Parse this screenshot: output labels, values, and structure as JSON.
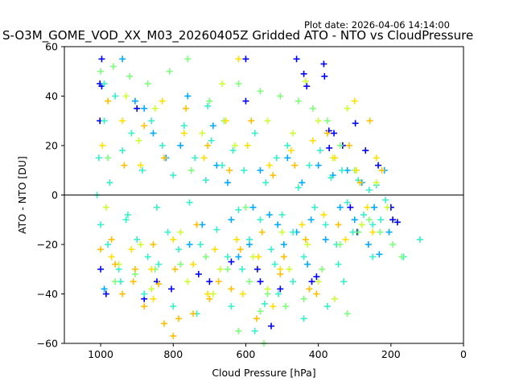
{
  "header": {
    "plot_date": "Plot date: 2026-04-06 14:14:00"
  },
  "chart_data": {
    "type": "scatter",
    "title": "S-O3M_GOME_VOD_XX_M03_20260405Z Gridded ATO - NTO vs CloudPressure",
    "xlabel": "Cloud Pressure [hPa]",
    "ylabel": "ATO - NTO [DU]",
    "xlim": [
      1100,
      0
    ],
    "ylim": [
      -60,
      60
    ],
    "x_inverted": true,
    "x_ticks": [
      1000,
      800,
      600,
      400,
      200,
      0
    ],
    "y_ticks": [
      -60,
      -40,
      -20,
      0,
      20,
      40,
      60
    ],
    "reference_line": {
      "y": 0,
      "color": "#000000"
    },
    "marker": "+",
    "grid": false,
    "colors": [
      "#0000ff",
      "#00aaff",
      "#35f0c8",
      "#7dff7a",
      "#ccff33",
      "#ffe000",
      "#ffbf00"
    ],
    "series": [
      {
        "color": "#0000ff",
        "points": [
          [
            997,
            55
          ],
          [
            1002,
            45
          ],
          [
            997,
            44
          ],
          [
            1002,
            30
          ],
          [
            1000,
            -30
          ],
          [
            985,
            -40
          ],
          [
            880,
            -42
          ],
          [
            845,
            -35
          ],
          [
            805,
            -38
          ],
          [
            730,
            -32
          ],
          [
            700,
            -35
          ],
          [
            640,
            -27
          ],
          [
            600,
            55
          ],
          [
            560,
            -35
          ],
          [
            530,
            -53
          ],
          [
            505,
            -38
          ],
          [
            460,
            55
          ],
          [
            440,
            49
          ],
          [
            432,
            44
          ],
          [
            385,
            53
          ],
          [
            383,
            48
          ],
          [
            371,
            26
          ],
          [
            370,
            19
          ],
          [
            357,
            25
          ],
          [
            333,
            20
          ],
          [
            312,
            -5
          ],
          [
            293,
            -15
          ],
          [
            298,
            29
          ],
          [
            270,
            18
          ],
          [
            235,
            12
          ],
          [
            200,
            -5
          ],
          [
            195,
            -10
          ],
          [
            182,
            -11
          ],
          [
            405,
            -33
          ],
          [
            418,
            -35
          ],
          [
            600,
            38
          ],
          [
            568,
            -30
          ],
          [
            900,
            35
          ]
        ]
      },
      {
        "color": "#00aaff",
        "points": [
          [
            940,
            55
          ],
          [
            905,
            38
          ],
          [
            880,
            35
          ],
          [
            855,
            25
          ],
          [
            820,
            15
          ],
          [
            780,
            20
          ],
          [
            755,
            -20
          ],
          [
            720,
            -12
          ],
          [
            690,
            28
          ],
          [
            650,
            5
          ],
          [
            620,
            -25
          ],
          [
            590,
            -20
          ],
          [
            560,
            10
          ],
          [
            535,
            -8
          ],
          [
            512,
            -12
          ],
          [
            485,
            15
          ],
          [
            460,
            -15
          ],
          [
            445,
            5
          ],
          [
            420,
            -10
          ],
          [
            400,
            12
          ],
          [
            380,
            -18
          ],
          [
            360,
            8
          ],
          [
            340,
            -5
          ],
          [
            320,
            10
          ],
          [
            300,
            -10
          ],
          [
            280,
            5
          ],
          [
            262,
            -20
          ],
          [
            246,
            -5
          ],
          [
            232,
            -24
          ],
          [
            218,
            10
          ],
          [
            205,
            -15
          ],
          [
            640,
            -10
          ],
          [
            680,
            12
          ],
          [
            580,
            -5
          ],
          [
            760,
            40
          ],
          [
            495,
            -20
          ],
          [
            430,
            -28
          ],
          [
            990,
            -38
          ]
        ]
      },
      {
        "color": "#35f0c8",
        "points": [
          [
            1005,
            15
          ],
          [
            1000,
            -12
          ],
          [
            990,
            30
          ],
          [
            980,
            -20
          ],
          [
            975,
            5
          ],
          [
            960,
            40
          ],
          [
            950,
            -30
          ],
          [
            940,
            18
          ],
          [
            925,
            -8
          ],
          [
            915,
            25
          ],
          [
            900,
            -18
          ],
          [
            885,
            10
          ],
          [
            870,
            -25
          ],
          [
            860,
            30
          ],
          [
            845,
            -5
          ],
          [
            830,
            20
          ],
          [
            815,
            -15
          ],
          [
            800,
            8
          ],
          [
            785,
            -22
          ],
          [
            770,
            28
          ],
          [
            755,
            -3
          ],
          [
            740,
            15
          ],
          [
            725,
            -20
          ],
          [
            710,
            6
          ],
          [
            695,
            22
          ],
          [
            680,
            -14
          ],
          [
            665,
            12
          ],
          [
            650,
            -25
          ],
          [
            635,
            18
          ],
          [
            620,
            -6
          ],
          [
            605,
            10
          ],
          [
            590,
            -18
          ],
          [
            575,
            25
          ],
          [
            560,
            -10
          ],
          [
            545,
            5
          ],
          [
            530,
            -22
          ],
          [
            515,
            15
          ],
          [
            500,
            -8
          ],
          [
            485,
            20
          ],
          [
            470,
            -15
          ],
          [
            455,
            3
          ],
          [
            440,
            -25
          ],
          [
            425,
            12
          ],
          [
            410,
            -5
          ],
          [
            395,
            18
          ],
          [
            380,
            -12
          ],
          [
            365,
            7
          ],
          [
            350,
            -20
          ],
          [
            335,
            10
          ],
          [
            320,
            -3
          ],
          [
            305,
            -15
          ],
          [
            290,
            6
          ],
          [
            275,
            -8
          ],
          [
            260,
            2
          ],
          [
            250,
            -12
          ],
          [
            240,
            4
          ],
          [
            228,
            -10
          ],
          [
            215,
            -2
          ],
          [
            990,
            45
          ],
          [
            945,
            -35
          ],
          [
            880,
            -40
          ],
          [
            800,
            -45
          ],
          [
            735,
            -48
          ],
          [
            640,
            -45
          ],
          [
            575,
            -55
          ],
          [
            510,
            -40
          ],
          [
            440,
            -50
          ],
          [
            375,
            -45
          ],
          [
            330,
            -35
          ],
          [
            250,
            -25
          ],
          [
            120,
            -18
          ],
          [
            705,
            36
          ],
          [
            840,
            -28
          ],
          [
            520,
            -28
          ],
          [
            610,
            -30
          ],
          [
            930,
            -10
          ],
          [
            1010,
            0
          ],
          [
            470,
            -35
          ],
          [
            345,
            -28
          ],
          [
            165,
            -25
          ],
          [
            548,
            -44
          ]
        ]
      },
      {
        "color": "#7dff7a",
        "points": [
          [
            1000,
            50
          ],
          [
            965,
            52
          ],
          [
            920,
            48
          ],
          [
            870,
            45
          ],
          [
            810,
            50
          ],
          [
            760,
            55
          ],
          [
            700,
            38
          ],
          [
            660,
            30
          ],
          [
            620,
            45
          ],
          [
            560,
            42
          ],
          [
            505,
            40
          ],
          [
            455,
            38
          ],
          [
            415,
            35
          ],
          [
            375,
            30
          ],
          [
            340,
            20
          ],
          [
            300,
            10
          ],
          [
            260,
            -10
          ],
          [
            230,
            -15
          ],
          [
            195,
            -20
          ],
          [
            170,
            -25
          ],
          [
            960,
            -35
          ],
          [
            905,
            -32
          ],
          [
            850,
            -30
          ],
          [
            780,
            -28
          ],
          [
            710,
            -25
          ],
          [
            650,
            -30
          ],
          [
            590,
            -35
          ],
          [
            540,
            -40
          ],
          [
            490,
            -45
          ],
          [
            440,
            -42
          ],
          [
            390,
            -30
          ],
          [
            340,
            -20
          ],
          [
            290,
            -15
          ],
          [
            620,
            -55
          ],
          [
            550,
            -60
          ],
          [
            320,
            -48
          ],
          [
            560,
            -47
          ],
          [
            980,
            15
          ],
          [
            750,
            10
          ],
          [
            600,
            -5
          ]
        ]
      },
      {
        "color": "#ccff33",
        "points": [
          [
            985,
            -5
          ],
          [
            930,
            40
          ],
          [
            890,
            -20
          ],
          [
            850,
            35
          ],
          [
            780,
            -15
          ],
          [
            720,
            25
          ],
          [
            670,
            -30
          ],
          [
            630,
            20
          ],
          [
            580,
            -25
          ],
          [
            540,
            30
          ],
          [
            500,
            -15
          ],
          [
            470,
            25
          ],
          [
            430,
            -20
          ],
          [
            400,
            30
          ],
          [
            360,
            15
          ],
          [
            320,
            35
          ],
          [
            280,
            -12
          ],
          [
            240,
            5
          ],
          [
            210,
            -5
          ],
          [
            950,
            -28
          ],
          [
            860,
            -38
          ],
          [
            760,
            -35
          ],
          [
            690,
            -40
          ],
          [
            540,
            -38
          ],
          [
            480,
            -30
          ],
          [
            400,
            -35
          ],
          [
            355,
            -42
          ],
          [
            895,
            22
          ],
          [
            665,
            45
          ],
          [
            435,
            46
          ]
        ]
      },
      {
        "color": "#ffe000",
        "points": [
          [
            995,
            20
          ],
          [
            970,
            -25
          ],
          [
            940,
            30
          ],
          [
            915,
            -22
          ],
          [
            890,
            12
          ],
          [
            860,
            -30
          ],
          [
            830,
            38
          ],
          [
            800,
            -18
          ],
          [
            770,
            25
          ],
          [
            745,
            -28
          ],
          [
            715,
            15
          ],
          [
            685,
            -22
          ],
          [
            655,
            30
          ],
          [
            625,
            -18
          ],
          [
            595,
            20
          ],
          [
            565,
            -25
          ],
          [
            535,
            12
          ],
          [
            505,
            -30
          ],
          [
            475,
            18
          ],
          [
            445,
            -12
          ],
          [
            415,
            22
          ],
          [
            385,
            -8
          ],
          [
            355,
            15
          ],
          [
            325,
            -18
          ],
          [
            295,
            10
          ],
          [
            265,
            -5
          ],
          [
            240,
            15
          ],
          [
            705,
            -40
          ],
          [
            855,
            -42
          ],
          [
            608,
            -40
          ],
          [
            525,
            -45
          ],
          [
            620,
            55
          ],
          [
            300,
            38
          ],
          [
            250,
            -15
          ]
        ]
      },
      {
        "color": "#ffbf00",
        "points": [
          [
            1000,
            -22
          ],
          [
            980,
            38
          ],
          [
            960,
            -28
          ],
          [
            935,
            12
          ],
          [
            910,
            -35
          ],
          [
            880,
            28
          ],
          [
            855,
            -20
          ],
          [
            825,
            15
          ],
          [
            795,
            -30
          ],
          [
            765,
            35
          ],
          [
            735,
            -12
          ],
          [
            705,
            20
          ],
          [
            675,
            -35
          ],
          [
            645,
            10
          ],
          [
            615,
            -22
          ],
          [
            585,
            30
          ],
          [
            555,
            -15
          ],
          [
            525,
            8
          ],
          [
            495,
            -25
          ],
          [
            465,
            12
          ],
          [
            435,
            -18
          ],
          [
            405,
            -40
          ],
          [
            375,
            25
          ],
          [
            345,
            -12
          ],
          [
            315,
            20
          ],
          [
            285,
            5
          ],
          [
            258,
            30
          ],
          [
            225,
            10
          ],
          [
            940,
            -40
          ],
          [
            880,
            -45
          ],
          [
            825,
            -52
          ],
          [
            800,
            -57
          ],
          [
            745,
            -48
          ],
          [
            700,
            -42
          ],
          [
            640,
            -38
          ],
          [
            570,
            -50
          ],
          [
            505,
            -32
          ],
          [
            425,
            -38
          ],
          [
            785,
            -50
          ],
          [
            840,
            -36
          ],
          [
            905,
            -30
          ],
          [
            970,
            -18
          ]
        ]
      }
    ]
  }
}
